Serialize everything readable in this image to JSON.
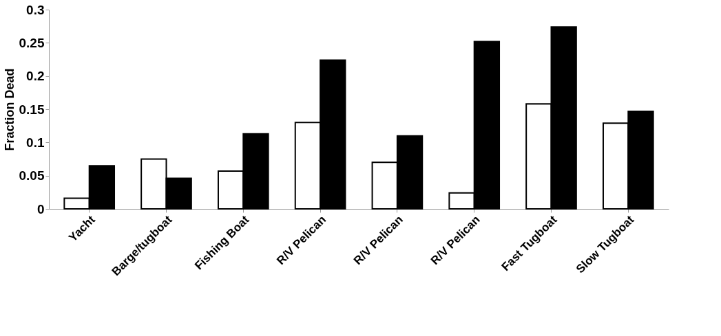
{
  "chart_data": {
    "type": "bar",
    "ylabel": "Fraction Dead",
    "categories": [
      "Yacht",
      "Barge/tugboat",
      "Fishing Boat",
      "R/V Pelican",
      "R/V Pelican",
      "R/V Pelican",
      "Fast Tugboat",
      "Slow Tugboat"
    ],
    "series": [
      {
        "color": "#ffffff",
        "values": [
          0.016,
          0.075,
          0.057,
          0.13,
          0.07,
          0.024,
          0.158,
          0.129
        ]
      },
      {
        "color": "#000000",
        "values": [
          0.065,
          0.046,
          0.113,
          0.224,
          0.11,
          0.252,
          0.274,
          0.147
        ]
      }
    ],
    "ylim": [
      0,
      0.3
    ],
    "yticks": [
      0,
      0.05,
      0.1,
      0.15,
      0.2,
      0.25,
      0.3
    ],
    "grid": false,
    "legend": false
  }
}
